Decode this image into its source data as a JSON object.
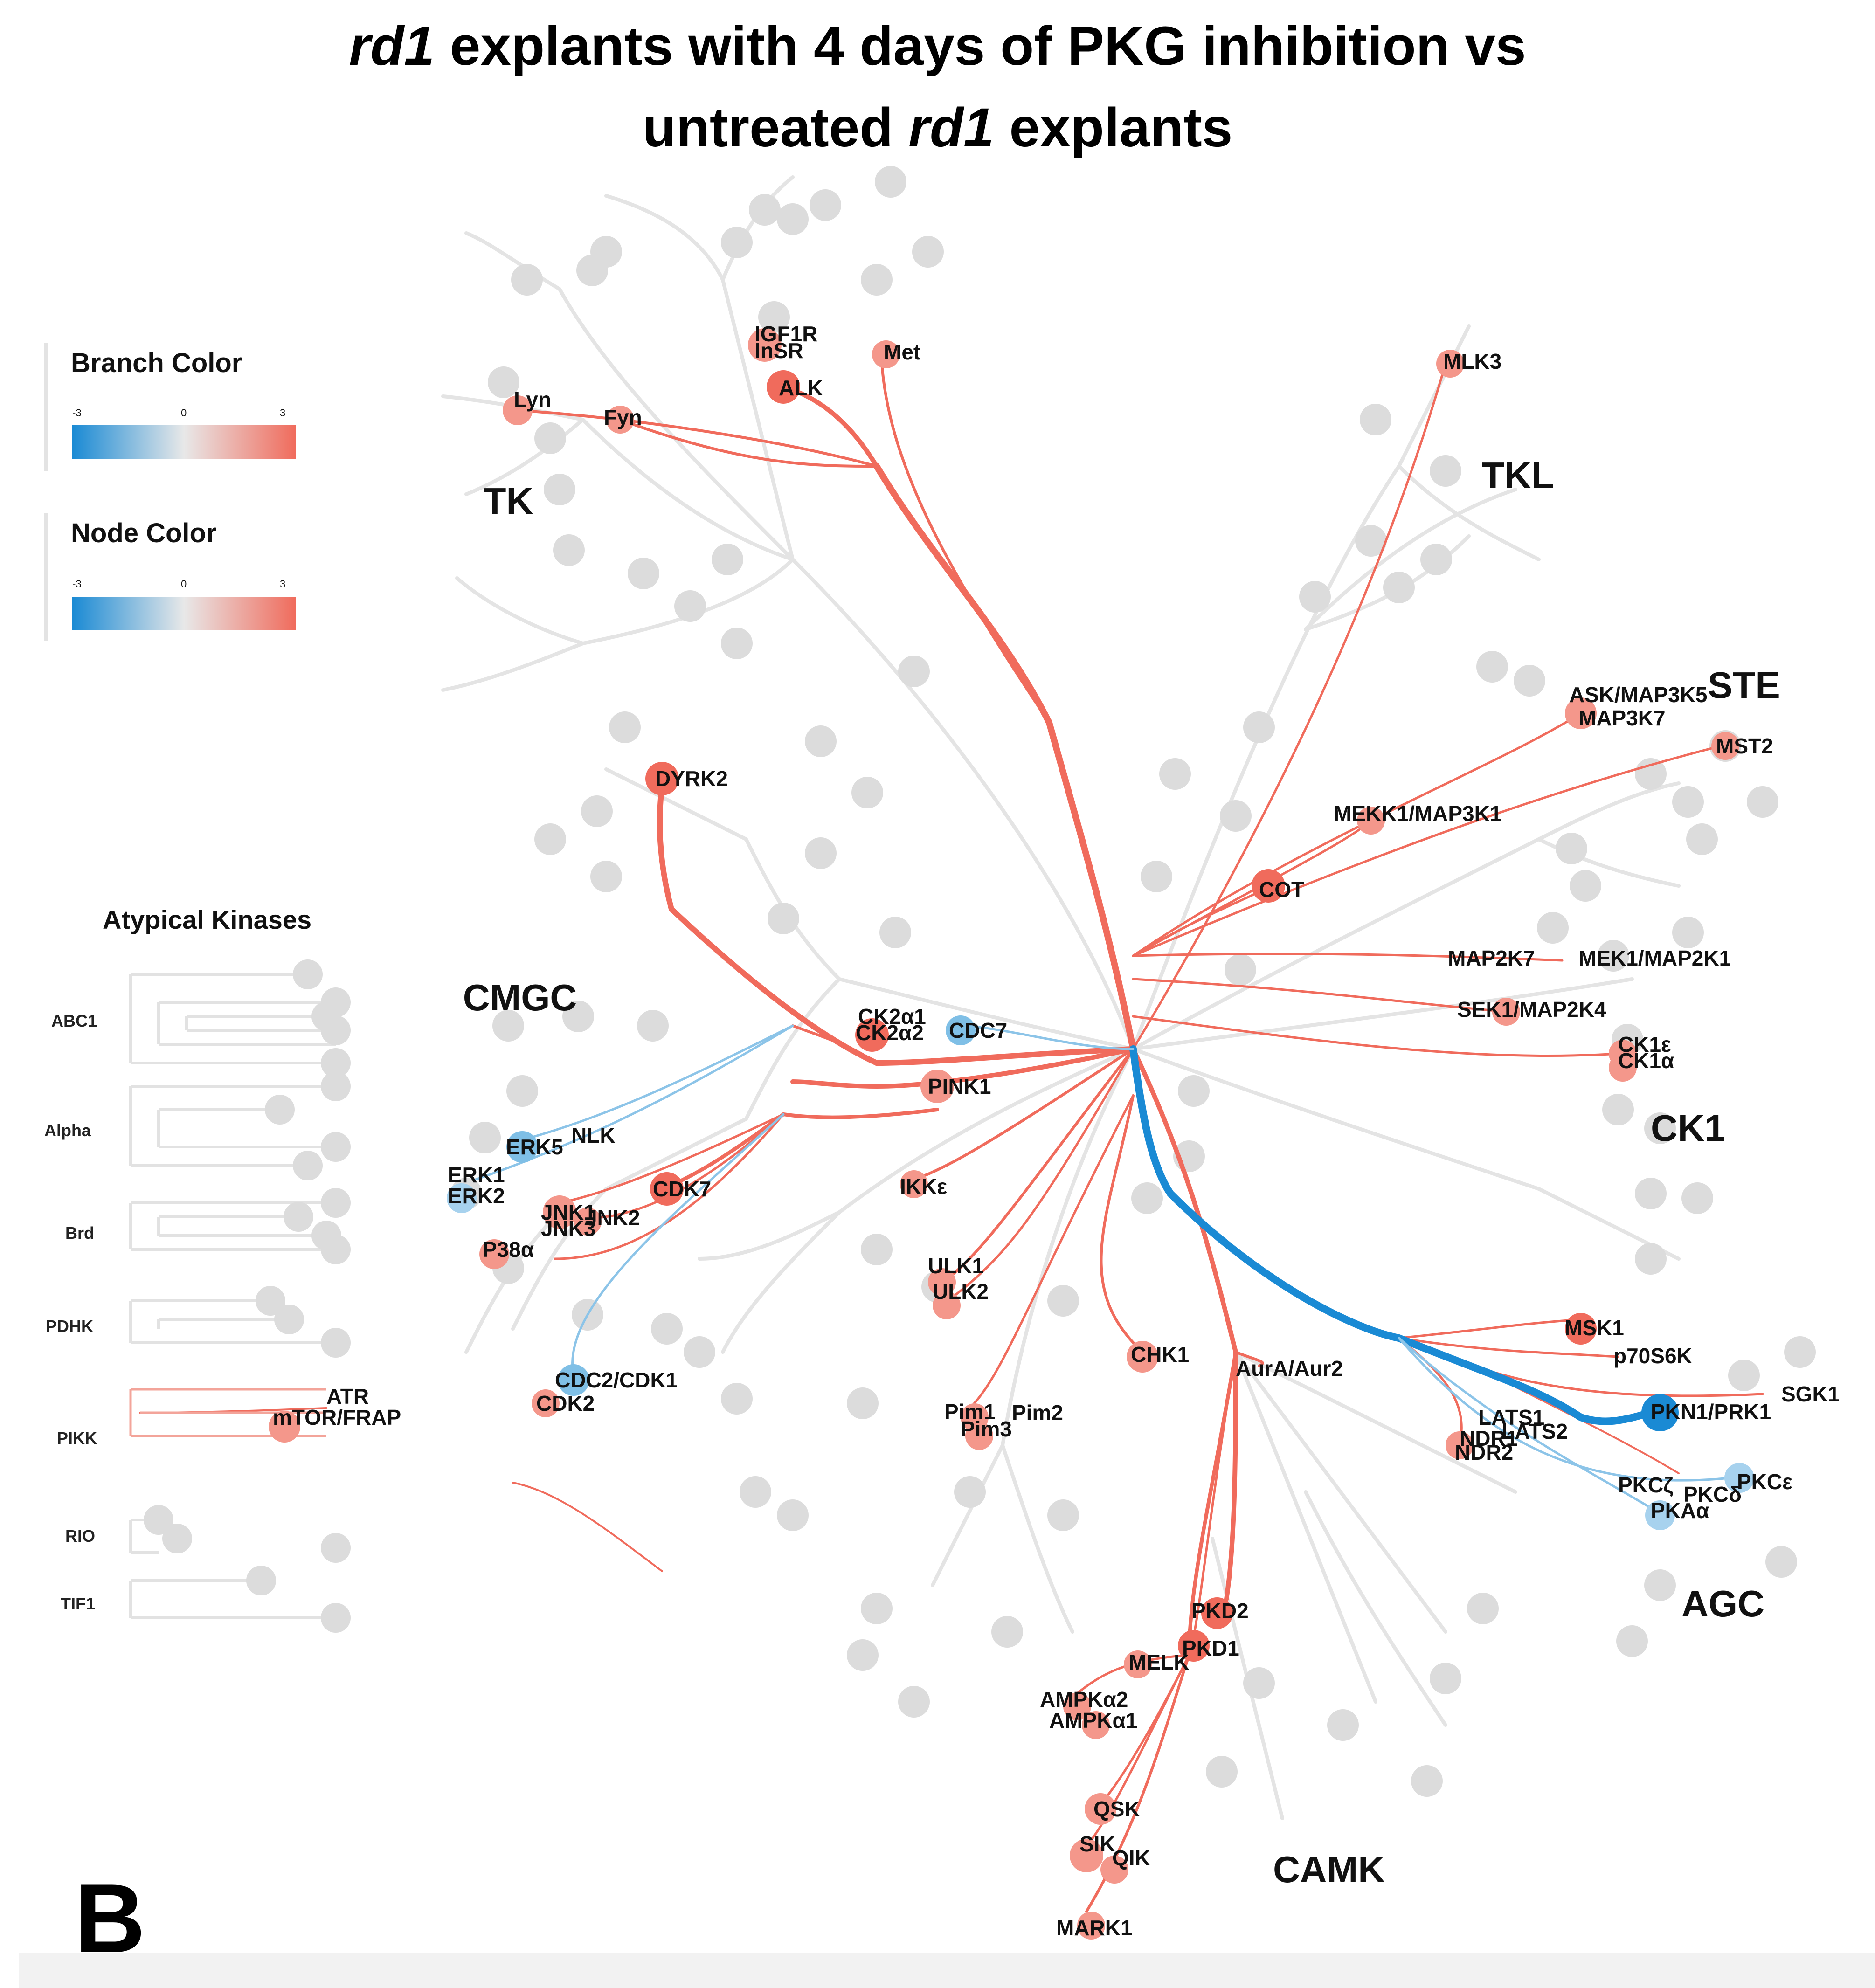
{
  "title": {
    "line1_italic": "rd1",
    "line1_rest": " explants with 4 days of PKG inhibition vs",
    "line2_start": "untreated ",
    "line2_italic": "rd1",
    "line2_end": " explants"
  },
  "panel_label": "B",
  "legend": {
    "branch": {
      "title": "Branch Color",
      "min": "-3",
      "mid": "0",
      "max": "3"
    },
    "node": {
      "title": "Node Color",
      "min": "-3",
      "mid": "0",
      "max": "3"
    }
  },
  "colors": {
    "positive": "#f06b5c",
    "negative": "#1a8ad4",
    "neutral": "#e5e5e5",
    "node_neutral": "#dcdcdc"
  },
  "families": {
    "TK": "TK",
    "TKL": "TKL",
    "STE": "STE",
    "CK1": "CK1",
    "AGC": "AGC",
    "CAMK": "CAMK",
    "CMGC": "CMGC",
    "atypical": "Atypical Kinases"
  },
  "atypical_groups": [
    "ABC1",
    "Alpha",
    "Brd",
    "PDHK",
    "PIKK",
    "RIO",
    "TIF1"
  ],
  "kinases": {
    "IGF1R": "IGF1R",
    "InSR": "InSR",
    "Met": "Met",
    "ALK": "ALK",
    "Lyn": "Lyn",
    "Fyn": "Fyn",
    "MLK3": "MLK3",
    "ASK": "ASK/MAP3K5",
    "MAP3K7": "MAP3K7",
    "MST2": "MST2",
    "MEKK1": "MEKK1/MAP3K1",
    "COT": "COT",
    "MAP2K7": "MAP2K7",
    "MEK1": "MEK1/MAP2K1",
    "SEK1": "SEK1/MAP2K4",
    "CK1e": "CK1ε",
    "CK1a": "CK1α",
    "DYRK2": "DYRK2",
    "CK2a1": "CK2α1",
    "CK2a2": "CK2α2",
    "CDC7": "CDC7",
    "PINK1": "PINK1",
    "ERK5": "ERK5",
    "NLK": "NLK",
    "ERK1": "ERK1",
    "ERK2": "ERK2",
    "CDK7": "CDK7",
    "JNK1": "JNK1",
    "JNK3": "JNK3",
    "JNK2": "JNK2",
    "P38a": "P38α",
    "IKKe": "IKKε",
    "ULK1": "ULK1",
    "ULK2": "ULK2",
    "CDC2": "CDC2/CDK1",
    "CDK2": "CDK2",
    "CHK1": "CHK1",
    "AurA": "AurA/Aur2",
    "Pim1": "Pim1",
    "Pim2": "Pim2",
    "Pim3": "Pim3",
    "MSK1": "MSK1",
    "p70S6K": "p70S6K",
    "SGK1": "SGK1",
    "PKN1": "PKN1/PRK1",
    "LATS1": "LATS1",
    "LATS2": "LATS2",
    "NDR1": "NDR1",
    "NDR2": "NDR2",
    "PKCz": "PKCζ",
    "PKCd": "PKCδ",
    "PKCe": "PKCε",
    "PKAa": "PKAα",
    "PKD2": "PKD2",
    "PKD1": "PKD1",
    "MELK": "MELK",
    "AMPKa2": "AMPKα2",
    "AMPKa1": "AMPKα1",
    "QSK": "QSK",
    "SIK": "SIK",
    "QIK": "QIK",
    "MARK1": "MARK1",
    "ATR": "ATR",
    "mTOR": "mTOR/FRAP"
  }
}
